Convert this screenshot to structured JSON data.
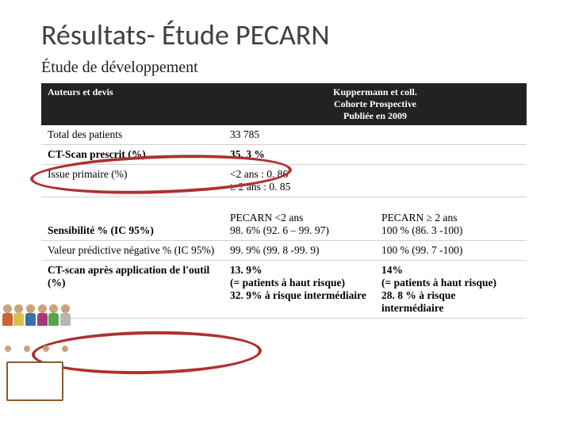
{
  "title": "Résultats- Étude PECARN",
  "subtitle": "Étude de développement",
  "header": {
    "col1": "Auteurs et devis",
    "col2_line1": "Kuppermann et coll.",
    "col2_line2": "Cohorte Prospective",
    "col2_line3": "Publiée en 2009"
  },
  "rows": {
    "total": {
      "label": "Total des patients",
      "val": "33 785"
    },
    "ctscan": {
      "label": "CT-Scan prescrit  (%)",
      "val": "35. 3 %"
    },
    "issue": {
      "label": "Issue primaire (%)",
      "val": "<2 ans : 0. 86\n≥ 2 ans : 0. 85"
    },
    "sens": {
      "label": "Sensibilité % (IC 95%)",
      "c2": "PECARN <2 ans\n98. 6% (92. 6 – 99. 97)",
      "c3": "PECARN ≥ 2 ans\n100 % (86. 3 -100)"
    },
    "vpn": {
      "label": "Valeur prédictive négative % (IC 95%)",
      "c2": "99. 9% (99. 8 -99. 9)",
      "c3": "100 % (99. 7 -100)"
    },
    "after": {
      "label": "CT-scan après application de l'outil (%)",
      "c2": "13. 9%\n(= patients à haut risque)\n32. 9% à risque intermédiaire",
      "c3": "14%\n(= patients à haut risque)\n28. 8 % à risque intermédiaire"
    }
  },
  "style": {
    "background": "#ffffff",
    "title_color": "#404040",
    "header_bg": "#222222",
    "header_fg": "#ffffff",
    "ellipse_color": "#b03030",
    "title_fontsize": 36,
    "subtitle_fontsize": 20,
    "body_fontsize": 13.5,
    "kids_shirt_colors": [
      "#c9643a",
      "#d9c24a",
      "#3b6fb0",
      "#a23a78",
      "#5aa34c",
      "#b6b6b6"
    ]
  }
}
